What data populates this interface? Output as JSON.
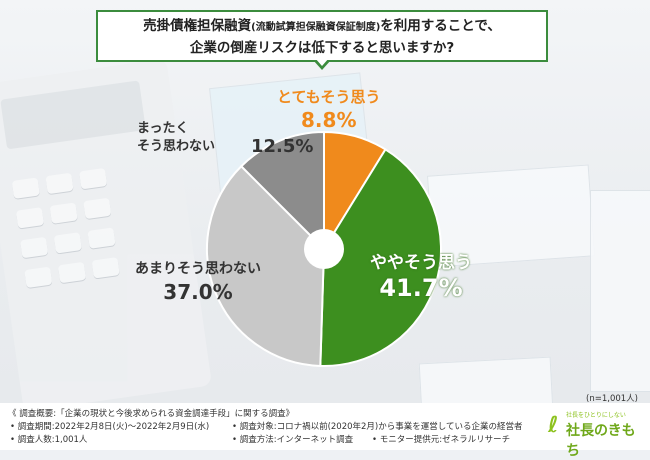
{
  "header": {
    "line1_a": "売掛債権担保融資",
    "line1_small": "(流動試算担保融資保証制度)",
    "line1_b": "を利用することで、",
    "line2": "企業の倒産リスクは低下すると思いますか?"
  },
  "chart_data": {
    "type": "pie",
    "style": "donut",
    "start": "top",
    "direction": "clockwise",
    "slices": [
      {
        "label": "とてもそう思う",
        "value": 8.8,
        "display": "8.8%",
        "color": "#f08a1c"
      },
      {
        "label": "ややそう思う",
        "value": 41.7,
        "display": "41.7%",
        "color": "#3d8f1f"
      },
      {
        "label": "あまりそう思わない",
        "value": 37.0,
        "display": "37.0%",
        "color": "#c8c8c8"
      },
      {
        "label_line1": "まったく",
        "label_line2": "そう思わない",
        "value": 12.5,
        "display": "12.5%",
        "color": "#8c8c8c"
      }
    ]
  },
  "note": "(n=1,001人)",
  "footer": {
    "title": "《 調査概要:「企業の現状と今後求められる資金調達手段」に関する調査》",
    "period": "• 調査期間:2022年2月8日(火)〜2022年2月9日(水)",
    "target": "• 調査対象:コロナ禍以前(2020年2月)から事業を運営している企業の経営者",
    "count": "• 調査人数:1,001人",
    "method": "• 調査方法:インターネット調査",
    "monitor": "• モニター提供元:ゼネラルリサーチ"
  },
  "logo": {
    "tagline": "社長をひとりにしない",
    "name": "社長のきもち"
  }
}
